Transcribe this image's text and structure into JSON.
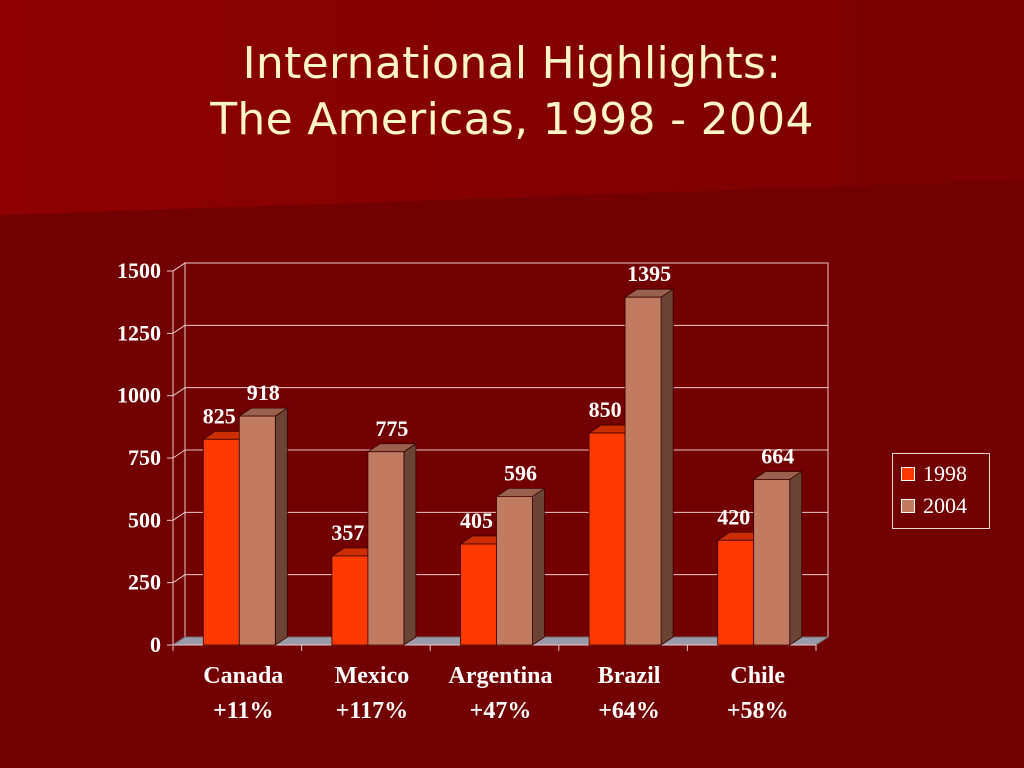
{
  "slide": {
    "title_line1": "International Highlights:",
    "title_line2": "The Americas, 1998 - 2004"
  },
  "colors": {
    "background": "#7a0000",
    "title": "#fff6c8",
    "series_1998": "#ff3a00",
    "series_2004": "#c17b61",
    "text": "#ffffff",
    "gridline": "#e8c8c8"
  },
  "chart_data": {
    "type": "bar",
    "categories": [
      "Canada",
      "Mexico",
      "Argentina",
      "Brazil",
      "Chile"
    ],
    "category_notes": [
      "+11%",
      "+117%",
      "+47%",
      "+64%",
      "+58%"
    ],
    "series": [
      {
        "name": "1998",
        "values": [
          825,
          357,
          405,
          850,
          420
        ]
      },
      {
        "name": "2004",
        "values": [
          918,
          775,
          596,
          1395,
          664
        ]
      }
    ],
    "ylim": [
      0,
      1500
    ],
    "yticks": [
      0,
      250,
      500,
      750,
      1000,
      1250,
      1500
    ],
    "grid": true,
    "legend": "right",
    "data_labels": true,
    "style": "3d-clustered-column"
  }
}
